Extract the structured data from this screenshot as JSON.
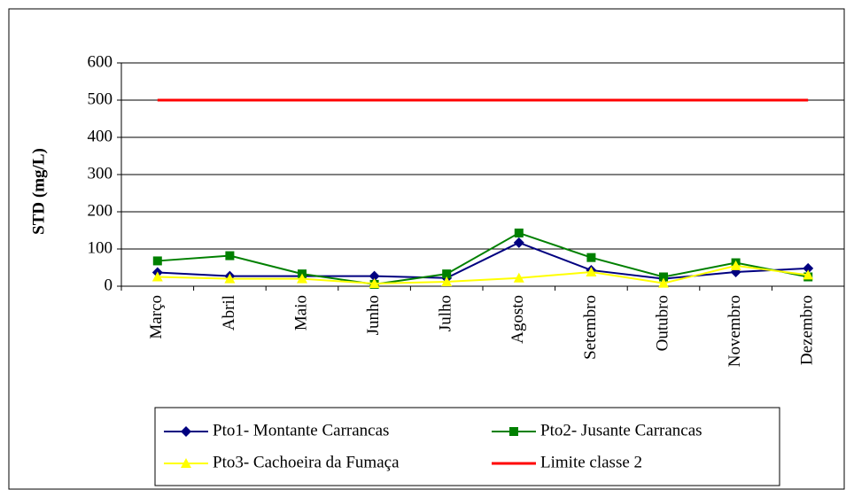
{
  "chart_data": {
    "type": "line",
    "y_label": "STD (mg/L)",
    "categories": [
      "Março",
      "Abril",
      "Maio",
      "Junho",
      "Julho",
      "Agosto",
      "Setembro",
      "Outubro",
      "Novembro",
      "Dezembro"
    ],
    "series": [
      {
        "name": "Pto1- Montante Carrancas",
        "color": "#000080",
        "marker": "diamond",
        "values": [
          37,
          27,
          27,
          27,
          22,
          117,
          43,
          20,
          38,
          48
        ]
      },
      {
        "name": "Pto2- Jusante Carrancas",
        "color": "#008000",
        "marker": "square",
        "values": [
          68,
          82,
          33,
          5,
          33,
          143,
          77,
          25,
          63,
          25
        ]
      },
      {
        "name": "Pto3- Cachoeira da Fumaça",
        "color": "#ffff00",
        "marker": "triangle",
        "values": [
          25,
          20,
          20,
          7,
          12,
          22,
          38,
          8,
          55,
          30
        ]
      },
      {
        "name": "Limite classe 2",
        "color": "#ff0000",
        "marker": "none",
        "values": [
          500,
          500,
          500,
          500,
          500,
          500,
          500,
          500,
          500,
          500
        ]
      }
    ],
    "ylim": [
      0,
      600
    ],
    "yticks": [
      0,
      100,
      200,
      300,
      400,
      500,
      600
    ],
    "grid": true,
    "legend": "bottom"
  }
}
